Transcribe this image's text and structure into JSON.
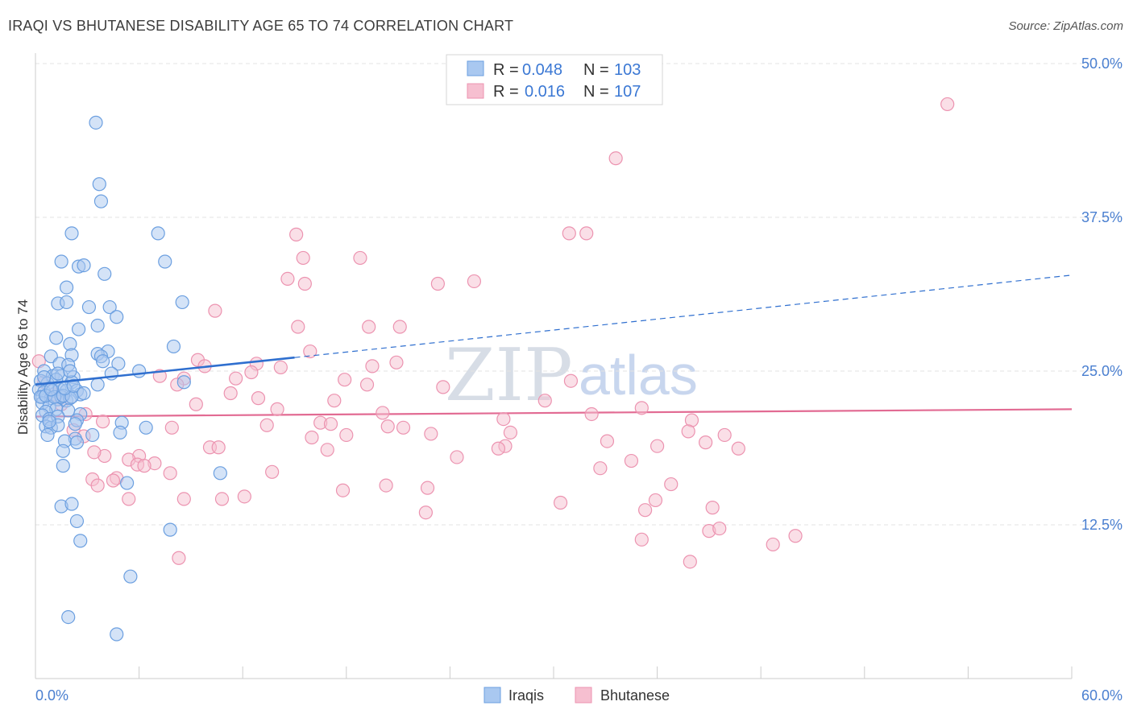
{
  "title": "IRAQI VS BHUTANESE DISABILITY AGE 65 TO 74 CORRELATION CHART",
  "source": "Source: ZipAtlas.com",
  "watermark": {
    "zip": "ZIP",
    "atlas": "atlas"
  },
  "colors": {
    "iraqis_fill": "#a9c8f0",
    "iraqis_stroke": "#6b9fe0",
    "iraqis_line": "#2f6fcf",
    "bhutanese_fill": "#f6bfd0",
    "bhutanese_stroke": "#ec93b0",
    "bhutanese_line": "#e26b93",
    "tick_text": "#4a7fd0",
    "grid": "#e3e3e3"
  },
  "legend": {
    "rows": [
      {
        "r_label": "R =",
        "r_value": "0.048",
        "n_label": "N =",
        "n_value": "103"
      },
      {
        "r_label": "R =",
        "r_value": "0.016",
        "n_label": "N =",
        "n_value": "107"
      }
    ]
  },
  "chart_data": {
    "type": "scatter",
    "title": "IRAQI VS BHUTANESE DISABILITY AGE 65 TO 74 CORRELATION CHART",
    "xlabel": "",
    "ylabel": "Disability Age 65 to 74",
    "xlim": [
      0,
      60
    ],
    "ylim": [
      0,
      50
    ],
    "x_tick_labels": [
      "0.0%",
      "60.0%"
    ],
    "y_ticks": [
      12.5,
      25.0,
      37.5,
      50.0
    ],
    "y_tick_labels": [
      "12.5%",
      "25.0%",
      "37.5%",
      "50.0%"
    ],
    "grid": true,
    "legend_position": "top-center",
    "series": [
      {
        "name": "Iraqis",
        "r": 0.048,
        "n": 103,
        "trend": {
          "x": [
            0,
            15
          ],
          "y": [
            23.9,
            26.1
          ],
          "extended_to": [
            60,
            32.8
          ],
          "extended_style": "dashed"
        },
        "points": [
          [
            3.5,
            45.2
          ],
          [
            3.7,
            40.2
          ],
          [
            3.8,
            38.8
          ],
          [
            2.1,
            36.2
          ],
          [
            7.1,
            36.2
          ],
          [
            7.5,
            33.9
          ],
          [
            1.5,
            33.9
          ],
          [
            2.5,
            33.5
          ],
          [
            2.8,
            33.6
          ],
          [
            4.0,
            32.9
          ],
          [
            1.8,
            31.8
          ],
          [
            8.5,
            30.6
          ],
          [
            1.3,
            30.5
          ],
          [
            1.8,
            30.6
          ],
          [
            3.1,
            30.2
          ],
          [
            4.3,
            30.2
          ],
          [
            4.7,
            29.4
          ],
          [
            2.5,
            28.4
          ],
          [
            3.6,
            28.7
          ],
          [
            1.2,
            27.7
          ],
          [
            8.0,
            27.0
          ],
          [
            2.0,
            27.2
          ],
          [
            4.2,
            26.6
          ],
          [
            0.9,
            26.2
          ],
          [
            2.1,
            26.3
          ],
          [
            3.6,
            26.4
          ],
          [
            3.8,
            26.2
          ],
          [
            1.4,
            25.6
          ],
          [
            1.9,
            25.5
          ],
          [
            3.9,
            25.8
          ],
          [
            4.8,
            25.6
          ],
          [
            0.5,
            25.0
          ],
          [
            1.0,
            24.6
          ],
          [
            1.5,
            24.6
          ],
          [
            2.2,
            24.5
          ],
          [
            6.0,
            25.0
          ],
          [
            4.4,
            24.8
          ],
          [
            0.3,
            24.2
          ],
          [
            0.7,
            24.0
          ],
          [
            1.2,
            24.3
          ],
          [
            2.1,
            24.1
          ],
          [
            3.6,
            23.9
          ],
          [
            8.6,
            24.1
          ],
          [
            0.2,
            23.5
          ],
          [
            0.5,
            23.3
          ],
          [
            1.0,
            23.4
          ],
          [
            1.4,
            23.5
          ],
          [
            1.8,
            23.4
          ],
          [
            2.4,
            23.4
          ],
          [
            2.6,
            23.1
          ],
          [
            0.4,
            22.9
          ],
          [
            0.9,
            22.8
          ],
          [
            1.3,
            22.7
          ],
          [
            1.8,
            22.6
          ],
          [
            1.5,
            22.9
          ],
          [
            2.0,
            22.8
          ],
          [
            0.4,
            22.4
          ],
          [
            0.8,
            22.1
          ],
          [
            1.2,
            21.9
          ],
          [
            0.6,
            21.7
          ],
          [
            1.9,
            21.8
          ],
          [
            2.6,
            21.5
          ],
          [
            0.4,
            21.4
          ],
          [
            0.8,
            21.1
          ],
          [
            1.3,
            21.3
          ],
          [
            2.4,
            21.0
          ],
          [
            5.0,
            20.8
          ],
          [
            0.6,
            20.5
          ],
          [
            0.9,
            20.4
          ],
          [
            1.3,
            20.6
          ],
          [
            2.3,
            20.7
          ],
          [
            6.4,
            20.4
          ],
          [
            0.7,
            19.8
          ],
          [
            3.3,
            19.8
          ],
          [
            2.3,
            19.5
          ],
          [
            4.9,
            20.0
          ],
          [
            1.7,
            19.3
          ],
          [
            2.4,
            19.2
          ],
          [
            1.6,
            18.5
          ],
          [
            10.7,
            16.7
          ],
          [
            1.6,
            17.3
          ],
          [
            5.3,
            15.9
          ],
          [
            1.5,
            14.0
          ],
          [
            2.1,
            14.2
          ],
          [
            2.4,
            12.8
          ],
          [
            7.8,
            12.1
          ],
          [
            2.6,
            11.2
          ],
          [
            5.5,
            8.3
          ],
          [
            1.9,
            5.0
          ],
          [
            4.7,
            3.6
          ],
          [
            0.3,
            22.9
          ],
          [
            0.6,
            23.0
          ],
          [
            1.1,
            22.9
          ],
          [
            1.6,
            23.0
          ],
          [
            2.1,
            22.9
          ],
          [
            2.8,
            23.2
          ],
          [
            0.9,
            23.5
          ],
          [
            1.7,
            23.6
          ],
          [
            2.2,
            23.8
          ],
          [
            0.5,
            24.5
          ],
          [
            1.3,
            24.8
          ],
          [
            2.0,
            25.0
          ],
          [
            0.8,
            20.9
          ]
        ]
      },
      {
        "name": "Bhutanese",
        "r": 0.016,
        "n": 107,
        "trend": {
          "x": [
            0,
            60
          ],
          "y": [
            21.3,
            21.9
          ]
        },
        "points": [
          [
            52.8,
            46.7
          ],
          [
            33.6,
            42.3
          ],
          [
            15.1,
            36.1
          ],
          [
            30.9,
            36.2
          ],
          [
            31.9,
            36.2
          ],
          [
            15.5,
            34.2
          ],
          [
            18.8,
            34.2
          ],
          [
            14.6,
            32.5
          ],
          [
            15.6,
            32.1
          ],
          [
            23.3,
            32.1
          ],
          [
            25.4,
            32.3
          ],
          [
            10.4,
            29.9
          ],
          [
            15.2,
            28.6
          ],
          [
            19.3,
            28.6
          ],
          [
            21.1,
            28.6
          ],
          [
            15.9,
            26.6
          ],
          [
            9.4,
            25.9
          ],
          [
            9.8,
            25.4
          ],
          [
            12.8,
            25.6
          ],
          [
            14.2,
            25.3
          ],
          [
            19.5,
            25.4
          ],
          [
            20.9,
            25.7
          ],
          [
            7.2,
            24.6
          ],
          [
            8.6,
            24.4
          ],
          [
            11.6,
            24.4
          ],
          [
            12.5,
            24.9
          ],
          [
            17.9,
            24.3
          ],
          [
            31.0,
            24.2
          ],
          [
            8.2,
            23.9
          ],
          [
            19.2,
            23.9
          ],
          [
            23.6,
            23.7
          ],
          [
            11.3,
            23.2
          ],
          [
            29.5,
            22.6
          ],
          [
            9.3,
            22.3
          ],
          [
            12.9,
            22.8
          ],
          [
            17.3,
            22.6
          ],
          [
            14.0,
            21.9
          ],
          [
            20.1,
            21.6
          ],
          [
            35.1,
            22.0
          ],
          [
            32.2,
            21.5
          ],
          [
            3.9,
            20.9
          ],
          [
            7.9,
            20.4
          ],
          [
            13.4,
            20.6
          ],
          [
            16.5,
            20.8
          ],
          [
            17.1,
            20.7
          ],
          [
            20.4,
            20.5
          ],
          [
            21.3,
            20.4
          ],
          [
            27.1,
            21.1
          ],
          [
            38.0,
            21.0
          ],
          [
            37.8,
            20.1
          ],
          [
            39.9,
            19.8
          ],
          [
            22.9,
            19.9
          ],
          [
            27.5,
            20.0
          ],
          [
            16.0,
            19.6
          ],
          [
            27.2,
            18.9
          ],
          [
            33.1,
            19.3
          ],
          [
            36.0,
            18.9
          ],
          [
            38.8,
            19.2
          ],
          [
            40.7,
            18.7
          ],
          [
            10.1,
            18.8
          ],
          [
            16.9,
            18.6
          ],
          [
            26.8,
            18.7
          ],
          [
            6.0,
            18.1
          ],
          [
            5.4,
            17.8
          ],
          [
            5.9,
            17.4
          ],
          [
            6.9,
            17.5
          ],
          [
            7.8,
            16.7
          ],
          [
            13.7,
            16.8
          ],
          [
            32.7,
            17.1
          ],
          [
            34.5,
            17.7
          ],
          [
            3.3,
            16.2
          ],
          [
            3.6,
            15.7
          ],
          [
            4.7,
            16.3
          ],
          [
            20.3,
            15.7
          ],
          [
            22.7,
            15.5
          ],
          [
            17.8,
            15.3
          ],
          [
            36.8,
            15.8
          ],
          [
            5.4,
            14.6
          ],
          [
            8.6,
            14.6
          ],
          [
            10.8,
            14.6
          ],
          [
            12.1,
            14.8
          ],
          [
            30.4,
            14.3
          ],
          [
            35.9,
            14.5
          ],
          [
            39.2,
            13.9
          ],
          [
            22.6,
            13.5
          ],
          [
            35.3,
            13.7
          ],
          [
            39.0,
            12.0
          ],
          [
            39.6,
            12.2
          ],
          [
            44.0,
            11.6
          ],
          [
            35.1,
            11.3
          ],
          [
            8.3,
            9.8
          ],
          [
            37.9,
            9.5
          ],
          [
            42.7,
            10.9
          ],
          [
            4.0,
            18.1
          ],
          [
            4.5,
            16.1
          ],
          [
            6.3,
            17.3
          ],
          [
            10.6,
            18.8
          ],
          [
            2.2,
            20.2
          ],
          [
            2.8,
            19.7
          ],
          [
            3.4,
            18.4
          ],
          [
            0.2,
            25.8
          ],
          [
            0.5,
            24.1
          ],
          [
            1.1,
            23.1
          ],
          [
            1.5,
            22.3
          ],
          [
            2.9,
            21.5
          ],
          [
            18.0,
            19.8
          ],
          [
            24.4,
            18.0
          ]
        ]
      }
    ]
  },
  "bottom_legend": [
    {
      "label": "Iraqis"
    },
    {
      "label": "Bhutanese"
    }
  ]
}
